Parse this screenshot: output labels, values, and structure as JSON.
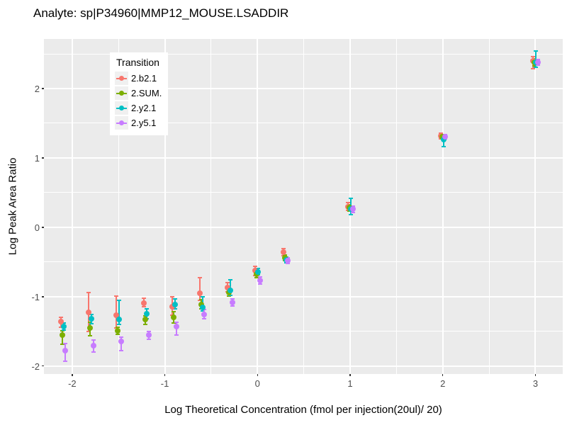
{
  "title": "Analyte: sp|P34960|MMP12_MOUSE.LSADDIR",
  "legend": {
    "title": "Transition",
    "items": [
      {
        "label": "2.b2.1",
        "color": "#F8766D"
      },
      {
        "label": "2.SUM.",
        "color": "#7CAE00"
      },
      {
        "label": "2.y2.1",
        "color": "#00BFC4"
      },
      {
        "label": "2.y5.1",
        "color": "#C77CFF"
      }
    ]
  },
  "chart_data": {
    "type": "scatter",
    "subtype": "points-with-error-bars",
    "title": "Analyte: sp|P34960|MMP12_MOUSE.LSADDIR",
    "xlabel": "Log Theoretical Concentration (fmol per injection(20ul)/ 20)",
    "ylabel": "Log Peak Area Ratio",
    "legend_title": "Transition",
    "legend_position": "inside-top-left",
    "grid": "major-and-minor-white-on-gray",
    "panel_bg": "#EBEBEB",
    "grid_color": "#FFFFFF",
    "x_axis": {
      "range": [
        -2.305,
        3.295
      ],
      "ticks": [
        -2,
        -1,
        0,
        1,
        2,
        3
      ],
      "minor_ticks": [
        -1.5,
        -0.5,
        0.5,
        1.5,
        2.5
      ]
    },
    "y_axis": {
      "range": [
        -2.115,
        2.715
      ],
      "ticks": [
        -2,
        -1,
        0,
        1,
        2
      ],
      "minor_ticks": [
        -1.5,
        -0.5,
        0.5,
        1.5,
        2.5
      ]
    },
    "x": [
      -2.1,
      -1.8,
      -1.5,
      -1.2,
      -0.9,
      -0.6,
      -0.3,
      0,
      0.3,
      1,
      2,
      3
    ],
    "series": [
      {
        "name": "2.b2.1",
        "color": "#F8766D",
        "y": [
          -1.36,
          -1.23,
          -1.27,
          -1.09,
          -1.14,
          -0.95,
          -0.87,
          -0.62,
          -0.36,
          0.3,
          1.32,
          2.4
        ],
        "lo": [
          -1.44,
          -1.5,
          -1.45,
          -1.15,
          -1.27,
          -1.05,
          -0.93,
          -0.7,
          -0.41,
          0.24,
          1.28,
          2.29
        ],
        "hi": [
          -1.3,
          -0.94,
          -0.99,
          -1.02,
          -1.0,
          -0.73,
          -0.8,
          -0.56,
          -0.31,
          0.36,
          1.36,
          2.46
        ]
      },
      {
        "name": "2.SUM.",
        "color": "#7CAE00",
        "y": [
          -1.55,
          -1.45,
          -1.49,
          -1.33,
          -1.3,
          -1.11,
          -0.94,
          -0.68,
          -0.44,
          0.28,
          1.31,
          2.38
        ],
        "lo": [
          -1.69,
          -1.56,
          -1.54,
          -1.4,
          -1.38,
          -1.18,
          -0.99,
          -0.73,
          -0.48,
          0.23,
          1.28,
          2.33
        ],
        "hi": [
          -1.49,
          -1.37,
          -1.44,
          -1.28,
          -1.22,
          -1.04,
          -0.89,
          -0.63,
          -0.4,
          0.33,
          1.34,
          2.43
        ]
      },
      {
        "name": "2.y2.1",
        "color": "#00BFC4",
        "y": [
          -1.43,
          -1.32,
          -1.33,
          -1.25,
          -1.11,
          -1.16,
          -0.91,
          -0.64,
          -0.47,
          0.26,
          1.26,
          2.38
        ],
        "lo": [
          -1.48,
          -1.39,
          -1.4,
          -1.32,
          -1.18,
          -1.21,
          -0.98,
          -0.69,
          -0.51,
          0.18,
          1.16,
          2.31
        ],
        "hi": [
          -1.38,
          -1.26,
          -1.05,
          -1.18,
          -1.03,
          -1.0,
          -0.76,
          -0.59,
          -0.43,
          0.42,
          1.32,
          2.54
        ]
      },
      {
        "name": "2.y5.1",
        "color": "#C77CFF",
        "y": [
          -1.78,
          -1.71,
          -1.65,
          -1.55,
          -1.43,
          -1.26,
          -1.08,
          -0.77,
          -0.48,
          0.26,
          1.31,
          2.38
        ],
        "lo": [
          -1.93,
          -1.8,
          -1.78,
          -1.61,
          -1.55,
          -1.32,
          -1.13,
          -0.82,
          -0.52,
          0.21,
          1.28,
          2.34
        ],
        "hi": [
          -1.68,
          -1.62,
          -1.58,
          -1.5,
          -1.37,
          -1.19,
          -1.03,
          -0.72,
          -0.44,
          0.31,
          1.34,
          2.42
        ]
      }
    ]
  }
}
